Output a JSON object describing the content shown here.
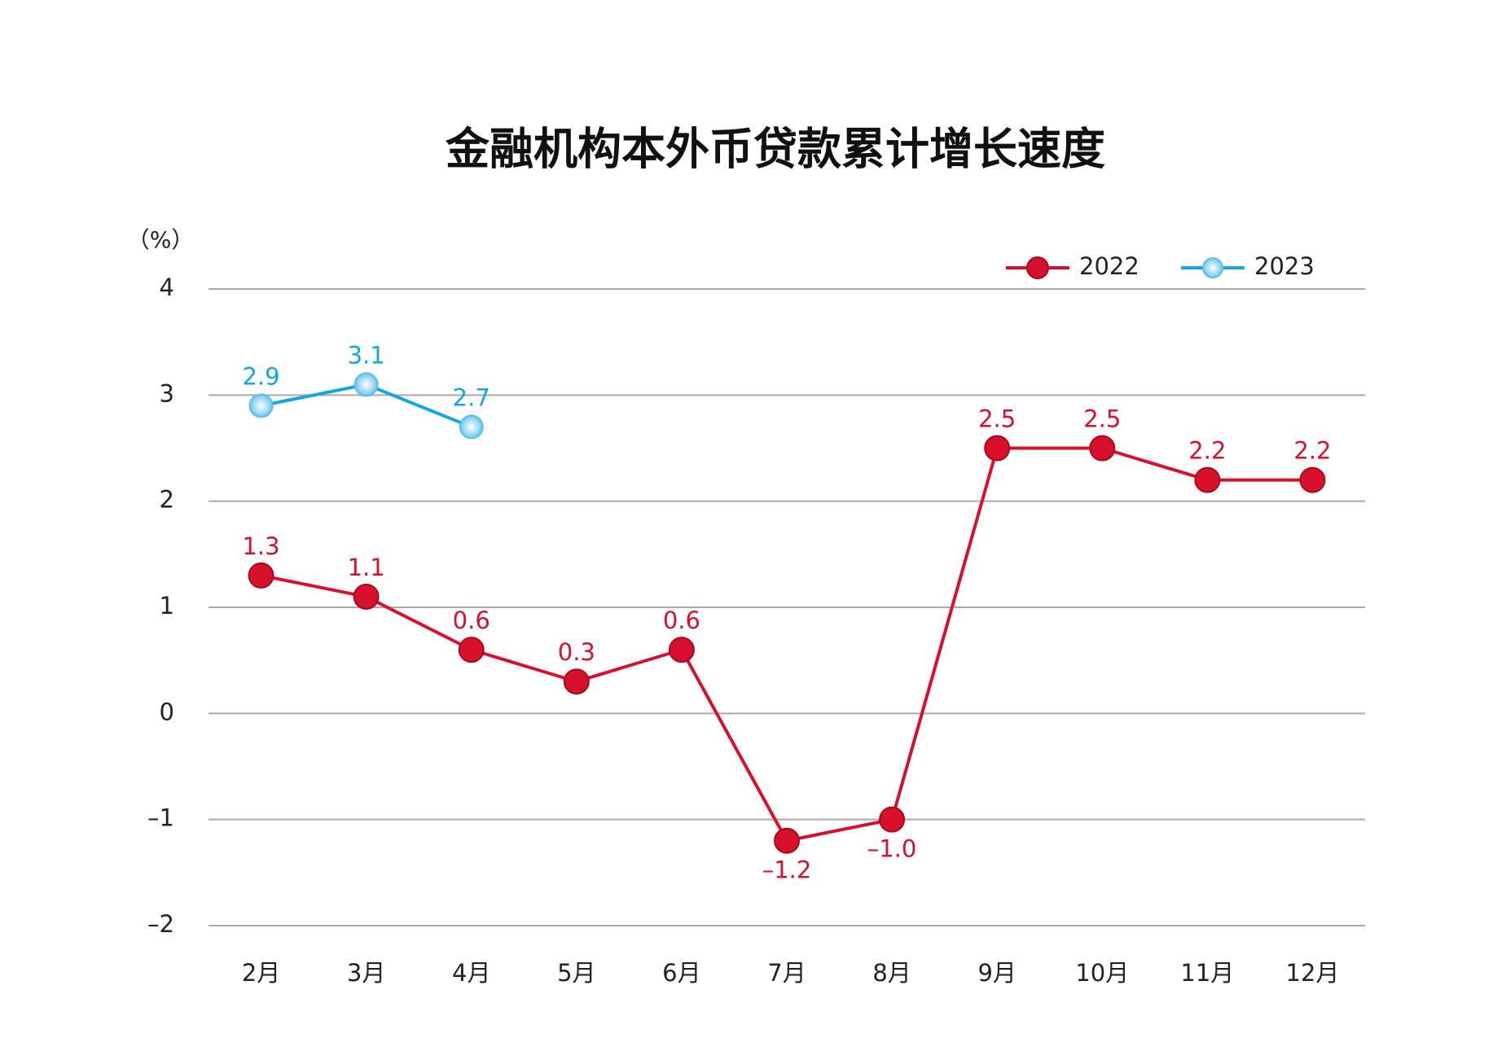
{
  "chart_data": {
    "type": "line",
    "title": "金融机构本外币贷款累计增长速度",
    "y_label": "（%）",
    "categories": [
      "2月",
      "3月",
      "4月",
      "5月",
      "6月",
      "7月",
      "8月",
      "9月",
      "10月",
      "11月",
      "12月"
    ],
    "series": [
      {
        "name": "2022",
        "color": "#d7102c",
        "values": [
          1.3,
          1.1,
          0.6,
          0.3,
          0.6,
          -1.2,
          -1.0,
          2.5,
          2.5,
          2.2,
          2.2
        ],
        "value_labels": [
          "1.3",
          "1.1",
          "0.6",
          "0.3",
          "0.6",
          "–1.2",
          "–1.0",
          "2.5",
          "2.5",
          "2.2",
          "2.2"
        ]
      },
      {
        "name": "2023",
        "color": "#14a6e0",
        "values": [
          2.9,
          3.1,
          2.7,
          null,
          null,
          null,
          null,
          null,
          null,
          null,
          null
        ]
      }
    ],
    "ylim": [
      -2,
      4
    ],
    "yticks": [
      {
        "value": -2,
        "label": "–2"
      },
      {
        "value": -1,
        "label": "–1"
      },
      0,
      1,
      2,
      3,
      4
    ],
    "grid": true,
    "legend": "top-right"
  }
}
